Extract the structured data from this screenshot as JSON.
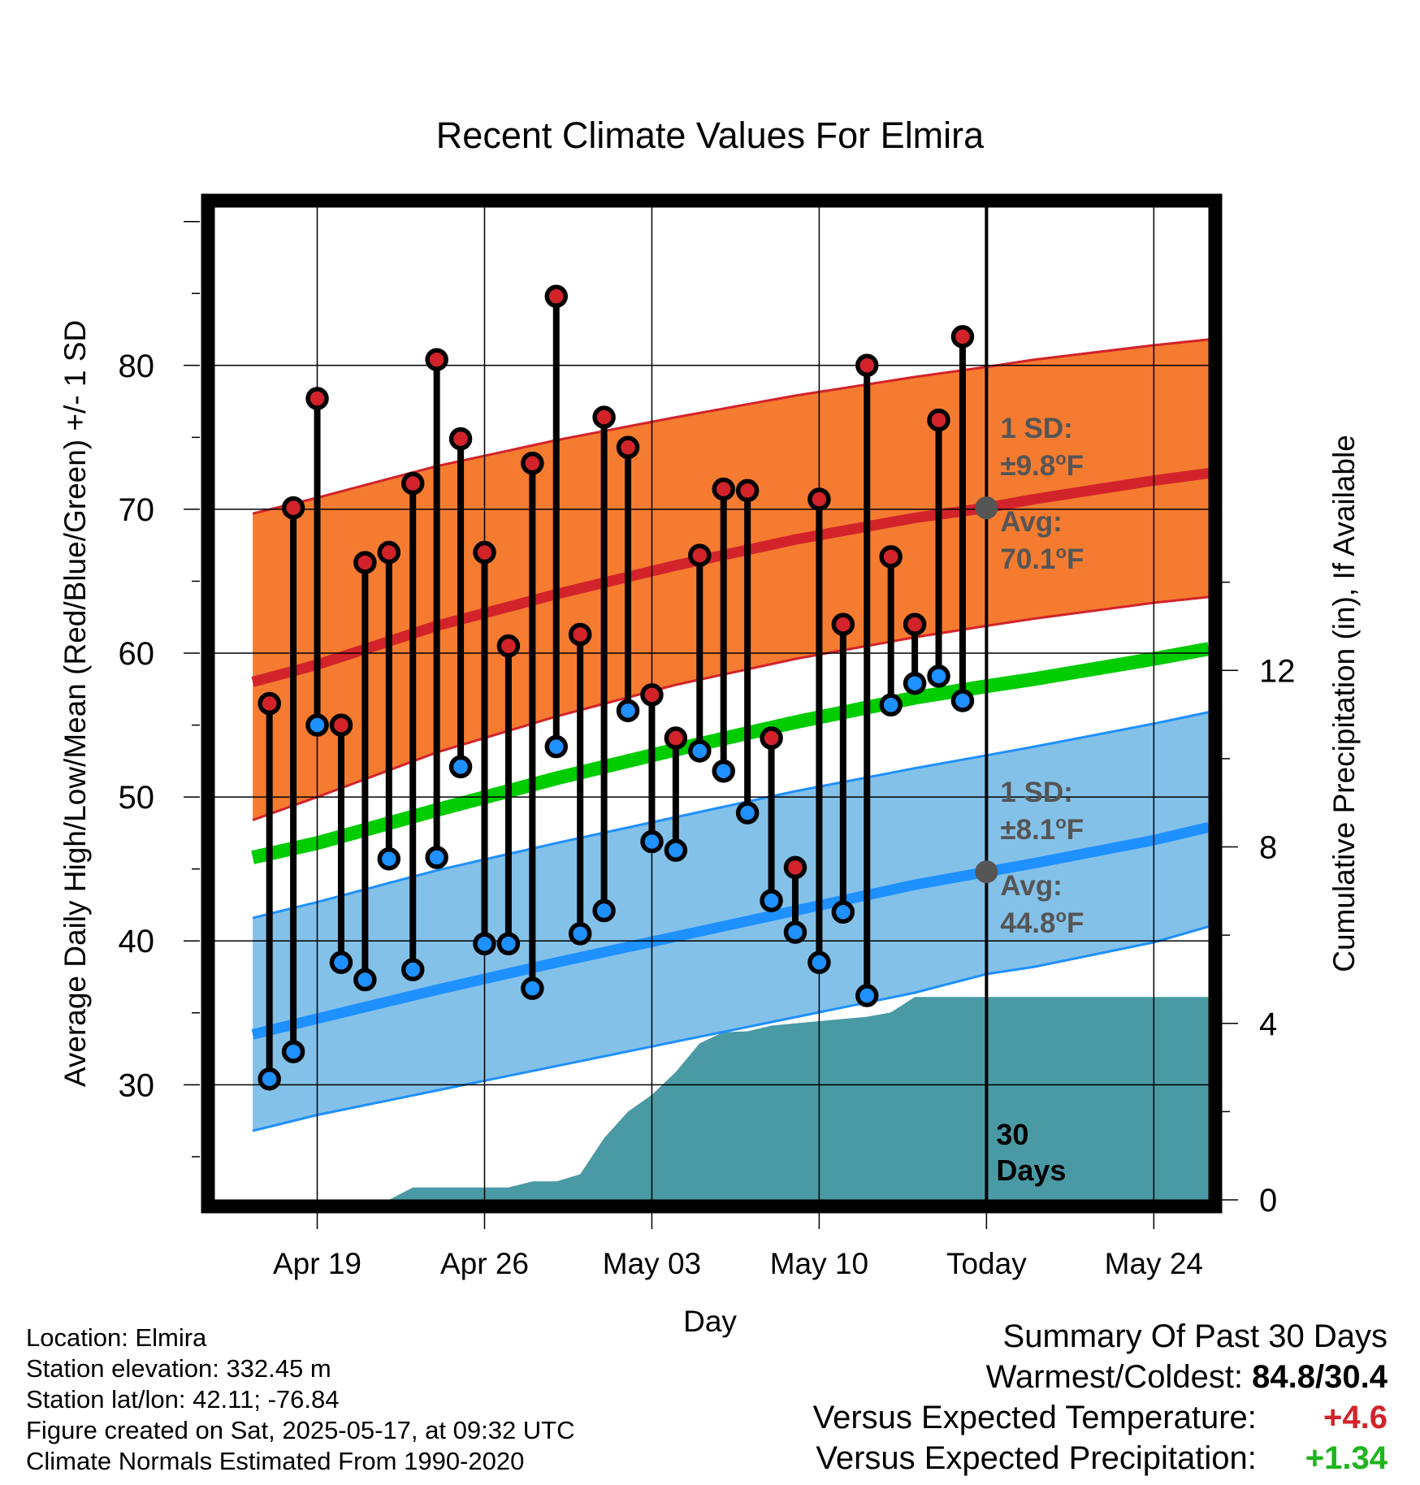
{
  "chart_data": {
    "type": "line",
    "title": "Recent Climate Values For Elmira",
    "xlabel": "Day",
    "ylabel": "Average Daily High/Low/Mean (Red/Blue/Green) +/- 1 SD",
    "y2label": "Cumulative Precipitation (in), If Available",
    "ylim": [
      22,
      91
    ],
    "yticks": [
      30,
      40,
      50,
      60,
      70,
      80
    ],
    "y2lim": [
      0,
      22.5
    ],
    "y2ticks": [
      0,
      4,
      8,
      12
    ],
    "xlim": [
      -4.3,
      37.3
    ],
    "x_ticks": [
      {
        "day": 0,
        "label": "Apr 19"
      },
      {
        "day": 7,
        "label": "Apr 26"
      },
      {
        "day": 14,
        "label": "May 03"
      },
      {
        "day": 21,
        "label": "May 10"
      },
      {
        "day": 28,
        "label": "Today"
      },
      {
        "day": 35,
        "label": "May 24"
      }
    ],
    "grid": true,
    "colors": {
      "high": "#d2232a",
      "low": "#1e90ff",
      "high_band": "#f47b30",
      "low_band": "#84c1e8",
      "mean": "#00cc00",
      "precip": "#4a9aa5"
    },
    "daily": [
      {
        "date": "Apr 17",
        "high": 56.5,
        "low": 30.4
      },
      {
        "date": "Apr 18",
        "high": 70.1,
        "low": 32.3
      },
      {
        "date": "Apr 19",
        "high": 77.7,
        "low": 55.0
      },
      {
        "date": "Apr 20",
        "high": 55.0,
        "low": 38.5
      },
      {
        "date": "Apr 21",
        "high": 66.3,
        "low": 37.3
      },
      {
        "date": "Apr 22",
        "high": 67.0,
        "low": 45.7
      },
      {
        "date": "Apr 23",
        "high": 71.8,
        "low": 38.0
      },
      {
        "date": "Apr 24",
        "high": 80.4,
        "low": 45.8
      },
      {
        "date": "Apr 25",
        "high": 74.9,
        "low": 52.1
      },
      {
        "date": "Apr 26",
        "high": 67.0,
        "low": 39.8
      },
      {
        "date": "Apr 27",
        "high": 60.5,
        "low": 39.8
      },
      {
        "date": "Apr 28",
        "high": 73.2,
        "low": 36.7
      },
      {
        "date": "Apr 29",
        "high": 84.8,
        "low": 53.5
      },
      {
        "date": "Apr 30",
        "high": 61.3,
        "low": 40.5
      },
      {
        "date": "May 01",
        "high": 76.4,
        "low": 42.1
      },
      {
        "date": "May 02",
        "high": 74.3,
        "low": 56.0
      },
      {
        "date": "May 03",
        "high": 57.1,
        "low": 46.9
      },
      {
        "date": "May 04",
        "high": 54.1,
        "low": 46.3
      },
      {
        "date": "May 05",
        "high": 66.8,
        "low": 53.2
      },
      {
        "date": "May 06",
        "high": 71.4,
        "low": 51.8
      },
      {
        "date": "May 07",
        "high": 71.3,
        "low": 48.9
      },
      {
        "date": "May 08",
        "high": 54.1,
        "low": 42.8
      },
      {
        "date": "May 09",
        "high": 45.1,
        "low": 40.6
      },
      {
        "date": "May 10",
        "high": 70.7,
        "low": 38.5
      },
      {
        "date": "May 11",
        "high": 62.0,
        "low": 42.0
      },
      {
        "date": "May 12",
        "high": 80.0,
        "low": 36.2
      },
      {
        "date": "May 13",
        "high": 66.7,
        "low": 56.4
      },
      {
        "date": "May 14",
        "high": 62.0,
        "low": 57.9
      },
      {
        "date": "May 15",
        "high": 76.2,
        "low": 58.4
      },
      {
        "date": "May 16",
        "high": 82.0,
        "low": 56.7
      }
    ],
    "normals": {
      "days": [
        -2.7,
        0,
        5,
        10,
        15,
        20,
        25,
        28,
        30,
        35,
        37.3
      ],
      "high_avg": [
        58.0,
        59.2,
        61.9,
        64.1,
        66.1,
        67.9,
        69.4,
        70.1,
        70.7,
        72.0,
        72.5
      ],
      "high_upper": [
        69.7,
        70.8,
        73.0,
        74.8,
        76.4,
        77.9,
        79.2,
        79.9,
        80.4,
        81.4,
        81.8
      ],
      "high_lower": [
        48.4,
        50.0,
        53.1,
        55.6,
        57.8,
        59.6,
        61.1,
        61.9,
        62.4,
        63.5,
        63.9
      ],
      "low_avg": [
        33.5,
        34.6,
        36.6,
        38.5,
        40.3,
        42.1,
        43.9,
        44.8,
        45.4,
        47.0,
        47.9
      ],
      "low_upper": [
        41.6,
        42.7,
        44.9,
        46.8,
        48.6,
        50.4,
        52.0,
        52.9,
        53.5,
        55.1,
        55.9
      ],
      "low_lower": [
        26.8,
        27.9,
        29.6,
        31.3,
        33.0,
        34.7,
        36.4,
        37.7,
        38.2,
        39.9,
        41.0
      ],
      "mean": [
        45.8,
        46.8,
        49.1,
        51.3,
        53.3,
        55.2,
        56.9,
        57.7,
        58.2,
        59.6,
        60.3
      ]
    },
    "precip": {
      "days": [
        3,
        4,
        6,
        8,
        9,
        10,
        11,
        12,
        13,
        14,
        15,
        16,
        17,
        18,
        19,
        20,
        21,
        22,
        23,
        24,
        25,
        26,
        27,
        28,
        37.3
      ],
      "values": [
        0,
        0.28,
        0.28,
        0.28,
        0.42,
        0.42,
        0.58,
        1.4,
        2.0,
        2.38,
        2.9,
        3.55,
        3.8,
        3.82,
        3.95,
        4.0,
        4.05,
        4.1,
        4.15,
        4.25,
        4.6,
        4.6,
        4.6,
        4.6,
        4.6
      ]
    },
    "today": {
      "day": 28,
      "label": "30\nDays",
      "label_line1": "30",
      "label_line2": "Days",
      "high_avg": 70.1,
      "low_avg": 44.8,
      "high_sd_label": "1 SD:",
      "high_sd_value": "±9.8°F",
      "high_sd_num": "±9.8",
      "high_avg_label": "Avg:",
      "high_avg_value": "70.1°F",
      "high_avg_num": "70.1",
      "low_sd_label": "1 SD:",
      "low_sd_value": "±8.1°F",
      "low_sd_num": "±8.1",
      "low_avg_label": "Avg:",
      "low_avg_value": "44.8°F",
      "low_avg_num": "44.8",
      "degree_sup": "o",
      "unit_F": "F"
    }
  },
  "info": {
    "location": "Location: Elmira",
    "elevation": "Station elevation: 332.45 m",
    "latlon": "Station lat/lon: 42.11; -76.84",
    "created": "Figure created on Sat, 2025-05-17, at 09:32 UTC",
    "normals": "Climate Normals Estimated From 1990-2020"
  },
  "summary": {
    "title": "Summary Of Past 30 Days",
    "warm_cold_label": "Warmest/Coldest:",
    "warm_cold_value": "84.8/30.4",
    "temp_label": "Versus Expected Temperature:",
    "temp_value": "+4.6",
    "temp_color": "#d2232a",
    "precip_label": "Versus Expected Precipitation:",
    "precip_value": "+1.34",
    "precip_color": "#1fb51f"
  }
}
